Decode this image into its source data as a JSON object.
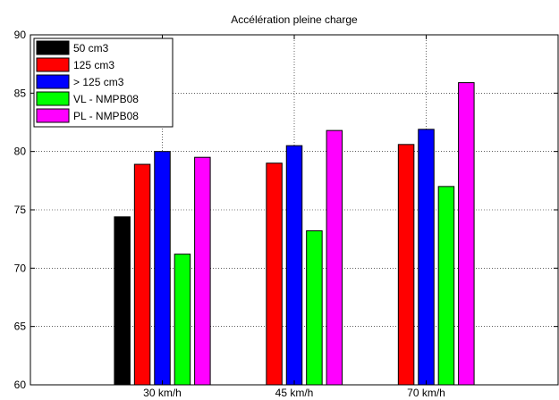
{
  "chart_data": {
    "type": "bar",
    "title": "Accélération pleine charge",
    "xlabel": "",
    "ylabel": "",
    "categories": [
      "30 km/h",
      "45 km/h",
      "70 km/h"
    ],
    "ylim": [
      60,
      90
    ],
    "yticks": [
      60,
      65,
      70,
      75,
      80,
      85,
      90
    ],
    "grid": true,
    "legend_position": "top-left",
    "series": [
      {
        "name": "50 cm3",
        "color": "#000000",
        "values": [
          74.4,
          null,
          null
        ]
      },
      {
        "name": "125 cm3",
        "color": "#ff0000",
        "values": [
          78.9,
          79.0,
          80.6
        ]
      },
      {
        "name": "> 125 cm3",
        "color": "#0000ff",
        "values": [
          80.0,
          80.5,
          81.9
        ]
      },
      {
        "name": "VL - NMPB08",
        "color": "#00ff00",
        "values": [
          71.2,
          73.2,
          77.0
        ]
      },
      {
        "name": "PL - NMPB08",
        "color": "#ff00ff",
        "values": [
          79.5,
          81.8,
          85.9
        ]
      }
    ]
  }
}
